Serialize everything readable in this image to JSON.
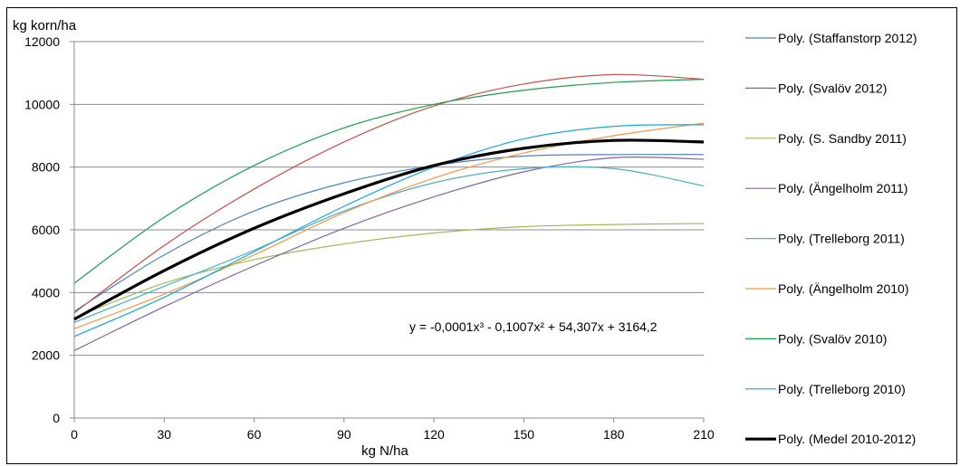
{
  "chart_data": {
    "type": "line",
    "ylabel": "kg korn/ha",
    "xlabel": "kg N/ha",
    "xlim": [
      0,
      210
    ],
    "ylim": [
      0,
      12000
    ],
    "x_ticks": [
      "0",
      "30",
      "60",
      "90",
      "120",
      "150",
      "180",
      "210"
    ],
    "y_ticks": [
      "0",
      "2000",
      "4000",
      "6000",
      "8000",
      "10000",
      "12000"
    ],
    "grid": true,
    "legend_position": "right",
    "equation": "y = -0,0001x³ - 0,1007x² + 54,307x + 3164,2",
    "x": [
      0,
      30,
      60,
      90,
      120,
      150,
      180,
      210
    ],
    "series": [
      {
        "name": "Poly. (Staffanstorp 2012)",
        "color": "#4f81bd",
        "width": 1.2,
        "values": [
          3400,
          5200,
          6600,
          7500,
          8050,
          8350,
          8400,
          8400
        ]
      },
      {
        "name": "Poly. (Svalöv 2012)",
        "color": "#c0504d",
        "width": 1.2,
        "values": [
          3350,
          5500,
          7300,
          8800,
          9950,
          10650,
          10950,
          10800
        ]
      },
      {
        "name": "Poly. (S. Sandby 2011)",
        "color": "#9bbb59",
        "width": 1.2,
        "values": [
          3200,
          4300,
          5050,
          5550,
          5900,
          6100,
          6170,
          6200
        ]
      },
      {
        "name": "Poly. (Ängelholm 2011)",
        "color": "#8064a2",
        "width": 1.2,
        "values": [
          2150,
          3550,
          4850,
          6050,
          7050,
          7850,
          8300,
          8250
        ]
      },
      {
        "name": "Poly. (Trelleborg 2011)",
        "color": "#4bacc6",
        "width": 1.2,
        "values": [
          3050,
          4200,
          5350,
          6600,
          7500,
          7950,
          7950,
          7400
        ]
      },
      {
        "name": "Poly. (Ängelholm 2010)",
        "color": "#f79646",
        "width": 1.2,
        "values": [
          2850,
          3950,
          5200,
          6550,
          7650,
          8450,
          9000,
          9400
        ]
      },
      {
        "name": "Poly. (Svalöv 2010)",
        "color": "#1a9e4a",
        "width": 1.2,
        "values": [
          4300,
          6400,
          8050,
          9250,
          10000,
          10450,
          10700,
          10800
        ]
      },
      {
        "name": "Poly. (Trelleborg 2010)",
        "color": "#17a6d6",
        "width": 1.2,
        "values": [
          2600,
          3850,
          5300,
          6750,
          8000,
          8900,
          9300,
          9350
        ]
      },
      {
        "name": "Poly. (Medel 2010-2012)",
        "color": "#000000",
        "width": 3.2,
        "values": [
          3150,
          4700,
          6050,
          7150,
          8050,
          8600,
          8850,
          8800
        ]
      }
    ]
  }
}
